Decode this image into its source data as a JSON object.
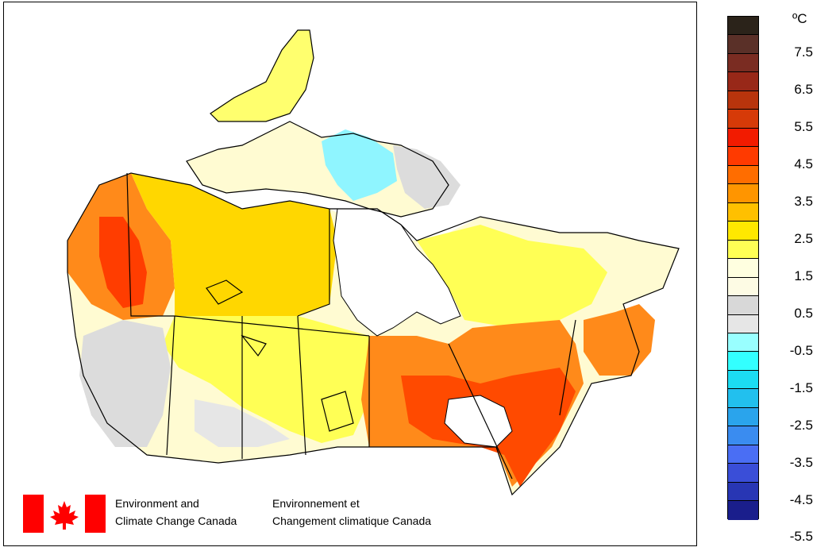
{
  "legend": {
    "unit": "ºC",
    "colors": [
      "#2b231a",
      "#5a3028",
      "#7a2c22",
      "#982818",
      "#b8340c",
      "#d63a08",
      "#f21b00",
      "#ff3a00",
      "#ff6d00",
      "#ff9500",
      "#ffc000",
      "#ffe800",
      "#ffff55",
      "#ffffe0",
      "#fdfbe4",
      "#d8d8d8",
      "#e6e6e6",
      "#99ffff",
      "#33ffff",
      "#1cdcf2",
      "#22c0ee",
      "#2aa4ec",
      "#3a8cf0",
      "#4a6ef4",
      "#3a4ed8",
      "#2836b4",
      "#1a1e8c"
    ],
    "labels": [
      "7.5",
      "6.5",
      "5.5",
      "4.5",
      "3.5",
      "2.5",
      "1.5",
      "0.5",
      "-0.5",
      "-1.5",
      "-2.5",
      "-3.5",
      "-4.5",
      "-5.5"
    ]
  },
  "org": {
    "en_line1": "Environment and",
    "en_line2": "Climate Change Canada",
    "fr_line1": "Environnement et",
    "fr_line2": "Changement climatique Canada"
  },
  "map": {
    "region": "Canada",
    "value_colors": {
      "yukon_bc_hot": "#ff3d00",
      "warm": "#ff8a1a",
      "hot": "#ff4a00",
      "mid": "#ffd700",
      "light_yellow": "#ffff6e",
      "pale": "#fffbd2",
      "grey": "#dcdcdc",
      "cyan": "#8ff5ff"
    }
  }
}
